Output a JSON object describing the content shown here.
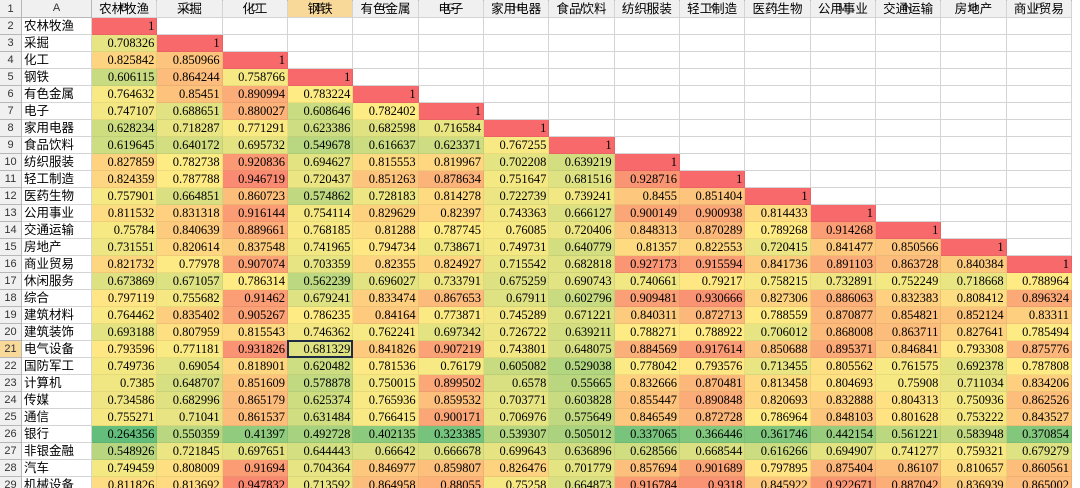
{
  "sheet": {
    "columns": [
      "A",
      "B",
      "C",
      "D",
      "E",
      "F",
      "G",
      "H",
      "I",
      "J",
      "K",
      "L",
      "M",
      "N",
      "O",
      "P"
    ],
    "selected_cell": "E21",
    "color_scale": {
      "low": "#63be7b",
      "mid": "#ffeb84",
      "high": "#f8696b"
    },
    "header_row": [
      "农林牧渔",
      "采掘",
      "化工",
      "钢铁",
      "有色金属",
      "电子",
      "家用电器",
      "食品饮料",
      "纺织服装",
      "轻工制造",
      "医药生物",
      "公用事业",
      "交通运输",
      "房地产",
      "商业贸易"
    ],
    "rows": [
      {
        "label": "农林牧渔",
        "values": [
          1
        ]
      },
      {
        "label": "采掘",
        "values": [
          0.708326,
          1
        ]
      },
      {
        "label": "化工",
        "values": [
          0.825842,
          0.850966,
          1
        ]
      },
      {
        "label": "钢铁",
        "values": [
          0.606115,
          0.864244,
          0.758766,
          1
        ]
      },
      {
        "label": "有色金属",
        "values": [
          0.764632,
          0.85451,
          0.890994,
          0.783224,
          1
        ]
      },
      {
        "label": "电子",
        "values": [
          0.747107,
          0.688651,
          0.880027,
          0.608646,
          0.782402,
          1
        ]
      },
      {
        "label": "家用电器",
        "values": [
          0.628234,
          0.718287,
          0.771291,
          0.623386,
          0.682598,
          0.716584,
          1
        ]
      },
      {
        "label": "食品饮料",
        "values": [
          0.619645,
          0.640172,
          0.695732,
          0.549678,
          0.616637,
          0.623371,
          0.767255,
          1
        ]
      },
      {
        "label": "纺织服装",
        "values": [
          0.827859,
          0.782738,
          0.920836,
          0.694627,
          0.815553,
          0.819967,
          0.702208,
          0.639219,
          1
        ]
      },
      {
        "label": "轻工制造",
        "values": [
          0.824359,
          0.787788,
          0.946719,
          0.720437,
          0.851263,
          0.878634,
          0.751647,
          0.681516,
          0.928716,
          1
        ]
      },
      {
        "label": "医药生物",
        "values": [
          0.757901,
          0.664851,
          0.860723,
          0.574862,
          0.728183,
          0.814278,
          0.722739,
          0.739241,
          0.8455,
          0.851404,
          1
        ]
      },
      {
        "label": "公用事业",
        "values": [
          0.811532,
          0.831318,
          0.916144,
          0.754114,
          0.829629,
          0.82397,
          0.743363,
          0.666127,
          0.900149,
          0.900938,
          0.814433,
          1
        ]
      },
      {
        "label": "交通运输",
        "values": [
          0.75784,
          0.840639,
          0.889661,
          0.768185,
          0.81288,
          0.787745,
          0.76085,
          0.720406,
          0.848313,
          0.870289,
          0.789268,
          0.914268,
          1
        ]
      },
      {
        "label": "房地产",
        "values": [
          0.731551,
          0.820614,
          0.837548,
          0.741965,
          0.794734,
          0.738671,
          0.749731,
          0.640779,
          0.81357,
          0.822553,
          0.720415,
          0.841477,
          0.850566,
          1
        ]
      },
      {
        "label": "商业贸易",
        "values": [
          0.821732,
          0.77978,
          0.907074,
          0.703359,
          0.82355,
          0.824927,
          0.715542,
          0.682818,
          0.927173,
          0.915594,
          0.841736,
          0.891103,
          0.863728,
          0.840384,
          1
        ]
      },
      {
        "label": "休闲服务",
        "values": [
          0.673869,
          0.671057,
          0.786314,
          0.562239,
          0.696027,
          0.733791,
          0.675259,
          0.690743,
          0.740661,
          0.79217,
          0.758215,
          0.732891,
          0.752249,
          0.718668,
          0.788964
        ]
      },
      {
        "label": "综合",
        "values": [
          0.797119,
          0.755682,
          0.91462,
          0.679241,
          0.833474,
          0.867653,
          0.67911,
          0.602796,
          0.909481,
          0.930666,
          0.827306,
          0.886063,
          0.832383,
          0.808412,
          0.896324
        ]
      },
      {
        "label": "建筑材料",
        "values": [
          0.764462,
          0.835402,
          0.905267,
          0.786235,
          0.84164,
          0.773871,
          0.745289,
          0.671221,
          0.840311,
          0.872713,
          0.788559,
          0.870877,
          0.854821,
          0.852124,
          0.83311
        ]
      },
      {
        "label": "建筑装饰",
        "values": [
          0.693188,
          0.807959,
          0.815543,
          0.746362,
          0.762241,
          0.697342,
          0.726722,
          0.639211,
          0.788271,
          0.788922,
          0.706012,
          0.868008,
          0.863711,
          0.827641,
          0.785494
        ]
      },
      {
        "label": "电气设备",
        "values": [
          0.793596,
          0.771181,
          0.931826,
          0.681329,
          0.841826,
          0.907219,
          0.743801,
          0.648075,
          0.884569,
          0.917614,
          0.850688,
          0.895371,
          0.846841,
          0.793308,
          0.875776
        ]
      },
      {
        "label": "国防军工",
        "values": [
          0.749736,
          0.69054,
          0.818901,
          0.620482,
          0.781536,
          0.76179,
          0.605082,
          0.529038,
          0.778042,
          0.793576,
          0.713455,
          0.805562,
          0.761575,
          0.692378,
          0.787808
        ]
      },
      {
        "label": "计算机",
        "values": [
          0.7385,
          0.648707,
          0.851609,
          0.578878,
          0.750015,
          0.899502,
          0.6578,
          0.55665,
          0.832666,
          0.870481,
          0.813458,
          0.804693,
          0.75908,
          0.711034,
          0.834206
        ]
      },
      {
        "label": "传媒",
        "values": [
          0.734586,
          0.682996,
          0.865179,
          0.625374,
          0.765936,
          0.859532,
          0.703771,
          0.603828,
          0.855447,
          0.890848,
          0.820693,
          0.832888,
          0.804313,
          0.750936,
          0.862526
        ]
      },
      {
        "label": "通信",
        "values": [
          0.755271,
          0.71041,
          0.861537,
          0.631484,
          0.766415,
          0.900171,
          0.706976,
          0.575649,
          0.846549,
          0.872728,
          0.786964,
          0.848103,
          0.801628,
          0.753222,
          0.843527
        ]
      },
      {
        "label": "银行",
        "values": [
          0.264356,
          0.550359,
          0.41397,
          0.492728,
          0.402135,
          0.323385,
          0.539307,
          0.505012,
          0.337065,
          0.366446,
          0.361746,
          0.442154,
          0.561221,
          0.583948,
          0.370854
        ]
      },
      {
        "label": "非银金融",
        "values": [
          0.548926,
          0.721845,
          0.697651,
          0.644443,
          0.66642,
          0.666678,
          0.699643,
          0.636896,
          0.628566,
          0.668544,
          0.616266,
          0.694907,
          0.741277,
          0.759321,
          0.679279
        ]
      },
      {
        "label": "汽车",
        "values": [
          0.749459,
          0.808009,
          0.91694,
          0.704364,
          0.846977,
          0.859807,
          0.826476,
          0.701779,
          0.857694,
          0.901689,
          0.797895,
          0.875404,
          0.86107,
          0.810657,
          0.860561
        ]
      },
      {
        "label": "机械设备",
        "values": [
          0.811826,
          0.813692,
          0.947832,
          0.713592,
          0.864958,
          0.88055,
          0.75258,
          0.664873,
          0.916784,
          0.9318,
          0.845922,
          0.922671,
          0.887042,
          0.836939,
          0.865002
        ]
      }
    ],
    "row_numbers": [
      1,
      2,
      3,
      4,
      5,
      6,
      7,
      8,
      9,
      10,
      11,
      12,
      13,
      14,
      15,
      16,
      17,
      18,
      19,
      20,
      21,
      22,
      23,
      24,
      25,
      26,
      27,
      28,
      29
    ]
  }
}
